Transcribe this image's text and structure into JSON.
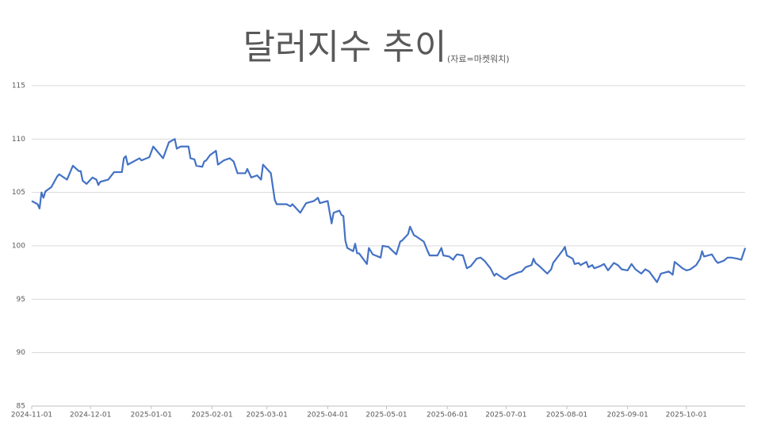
{
  "chart_data": {
    "type": "line",
    "title": "달러지수 추이",
    "subtitle": "(자료=마켓워치)",
    "x": [
      "2024-11-01",
      "2024-11-04",
      "2024-11-05",
      "2024-11-06",
      "2024-11-07",
      "2024-11-08",
      "2024-11-11",
      "2024-11-14",
      "2024-11-15",
      "2024-11-19",
      "2024-11-22",
      "2024-11-25",
      "2024-11-26",
      "2024-11-27",
      "2024-11-29",
      "2024-12-02",
      "2024-12-04",
      "2024-12-05",
      "2024-12-06",
      "2024-12-10",
      "2024-12-13",
      "2024-12-17",
      "2024-12-18",
      "2024-12-19",
      "2024-12-20",
      "2024-12-26",
      "2024-12-27",
      "2024-12-31",
      "2025-01-02",
      "2025-01-07",
      "2025-01-09",
      "2025-01-10",
      "2025-01-13",
      "2025-01-14",
      "2025-01-16",
      "2025-01-20",
      "2025-01-21",
      "2025-01-23",
      "2025-01-24",
      "2025-01-27",
      "2025-01-28",
      "2025-01-29",
      "2025-01-31",
      "2025-02-03",
      "2025-02-04",
      "2025-02-07",
      "2025-02-10",
      "2025-02-12",
      "2025-02-14",
      "2025-02-18",
      "2025-02-19",
      "2025-02-21",
      "2025-02-24",
      "2025-02-26",
      "2025-02-27",
      "2025-03-03",
      "2025-03-05",
      "2025-03-06",
      "2025-03-11",
      "2025-03-13",
      "2025-03-14",
      "2025-03-18",
      "2025-03-21",
      "2025-03-25",
      "2025-03-27",
      "2025-03-28",
      "2025-04-01",
      "2025-04-03",
      "2025-04-04",
      "2025-04-07",
      "2025-04-08",
      "2025-04-09",
      "2025-04-10",
      "2025-04-11",
      "2025-04-14",
      "2025-04-15",
      "2025-04-16",
      "2025-04-17",
      "2025-04-21",
      "2025-04-22",
      "2025-04-24",
      "2025-04-28",
      "2025-04-29",
      "2025-05-02",
      "2025-05-06",
      "2025-05-08",
      "2025-05-09",
      "2025-05-12",
      "2025-05-13",
      "2025-05-15",
      "2025-05-16",
      "2025-05-20",
      "2025-05-22",
      "2025-05-23",
      "2025-05-27",
      "2025-05-29",
      "2025-05-30",
      "2025-06-02",
      "2025-06-04",
      "2025-06-05",
      "2025-06-06",
      "2025-06-09",
      "2025-06-11",
      "2025-06-13",
      "2025-06-16",
      "2025-06-18",
      "2025-06-20",
      "2025-06-23",
      "2025-06-25",
      "2025-06-26",
      "2025-06-30",
      "2025-07-01",
      "2025-07-03",
      "2025-07-07",
      "2025-07-09",
      "2025-07-11",
      "2025-07-14",
      "2025-07-15",
      "2025-07-16",
      "2025-07-18",
      "2025-07-22",
      "2025-07-24",
      "2025-07-25",
      "2025-07-30",
      "2025-07-31",
      "2025-08-01",
      "2025-08-04",
      "2025-08-05",
      "2025-08-07",
      "2025-08-08",
      "2025-08-11",
      "2025-08-12",
      "2025-08-14",
      "2025-08-15",
      "2025-08-18",
      "2025-08-20",
      "2025-08-22",
      "2025-08-25",
      "2025-08-27",
      "2025-08-29",
      "2025-09-01",
      "2025-09-03",
      "2025-09-05",
      "2025-09-08",
      "2025-09-10",
      "2025-09-12",
      "2025-09-16",
      "2025-09-18",
      "2025-09-22",
      "2025-09-24",
      "2025-09-25",
      "2025-09-29",
      "2025-10-01",
      "2025-10-03",
      "2025-10-06",
      "2025-10-08",
      "2025-10-09",
      "2025-10-10",
      "2025-10-14",
      "2025-10-16",
      "2025-10-17",
      "2025-10-20",
      "2025-10-22",
      "2025-10-24",
      "2025-10-27",
      "2025-10-29",
      "2025-10-31"
    ],
    "series": [
      {
        "name": "달러지수",
        "color": "#4472c4",
        "values": [
          104.2,
          103.9,
          103.5,
          105.0,
          104.5,
          105.1,
          105.5,
          106.5,
          106.7,
          106.2,
          107.5,
          107.0,
          107.0,
          106.1,
          105.8,
          106.4,
          106.2,
          105.7,
          106.0,
          106.2,
          106.9,
          106.9,
          108.2,
          108.4,
          107.6,
          108.2,
          108.0,
          108.3,
          109.3,
          108.2,
          109.2,
          109.7,
          110.0,
          109.1,
          109.3,
          109.3,
          108.2,
          108.1,
          107.5,
          107.4,
          107.9,
          108.0,
          108.5,
          108.9,
          107.6,
          108.0,
          108.2,
          107.9,
          106.8,
          106.8,
          107.2,
          106.4,
          106.6,
          106.2,
          107.6,
          106.8,
          104.3,
          103.9,
          103.9,
          103.7,
          103.9,
          103.1,
          104.0,
          104.2,
          104.5,
          104.0,
          104.2,
          102.1,
          103.1,
          103.3,
          102.9,
          102.8,
          100.5,
          99.8,
          99.5,
          100.2,
          99.3,
          99.3,
          98.3,
          99.8,
          99.2,
          98.9,
          100.0,
          99.9,
          99.2,
          100.4,
          100.5,
          101.1,
          101.8,
          101.0,
          100.9,
          100.4,
          99.5,
          99.1,
          99.1,
          99.8,
          99.1,
          99.0,
          98.7,
          99.0,
          99.2,
          99.1,
          97.9,
          98.1,
          98.8,
          98.9,
          98.6,
          97.9,
          97.2,
          97.4,
          96.9,
          96.9,
          97.2,
          97.5,
          97.6,
          98.0,
          98.2,
          98.8,
          98.4,
          98.1,
          97.4,
          97.8,
          98.4,
          99.6,
          99.9,
          99.1,
          98.8,
          98.3,
          98.4,
          98.2,
          98.5,
          98.0,
          98.2,
          97.9,
          98.1,
          98.3,
          97.7,
          98.4,
          98.2,
          97.8,
          97.7,
          98.3,
          97.8,
          97.4,
          97.8,
          97.6,
          96.6,
          97.4,
          97.6,
          97.3,
          98.5,
          97.9,
          97.7,
          97.8,
          98.2,
          98.8,
          99.5,
          99.0,
          99.2,
          98.6,
          98.4,
          98.6,
          98.9,
          98.9,
          98.8,
          98.7,
          99.8
        ]
      }
    ],
    "xlim": [
      "2024-11-01",
      "2025-10-31"
    ],
    "xticks": [
      "2024-11-01",
      "2024-12-01",
      "2025-01-01",
      "2025-02-01",
      "2025-03-01",
      "2025-04-01",
      "2025-05-01",
      "2025-06-01",
      "2025-07-01",
      "2025-08-01",
      "2025-09-01",
      "2025-10-01"
    ],
    "ylim": [
      85,
      115
    ],
    "yticks": [
      85,
      90,
      95,
      100,
      105,
      110,
      115
    ],
    "grid": true
  }
}
